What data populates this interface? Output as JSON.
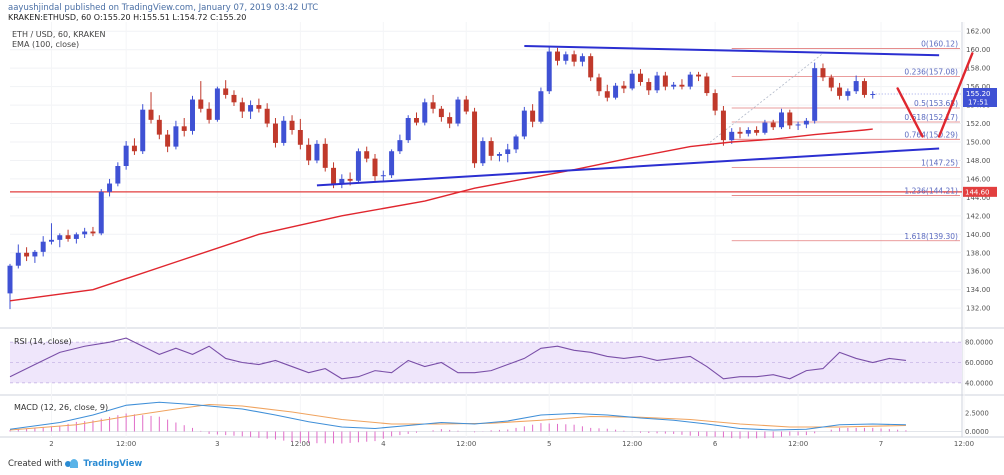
{
  "header": {
    "publish_info": "aayushjindal published on TradingView.com, January 07, 2019 03:42 UTC",
    "symbol_line": "KRAKEN:ETHUSD, 60  O:155.20  H:155.51  L:154.72  C:155.20",
    "title": "ETH / USD, 60, KRAKEN",
    "indicator": "EMA (100, close)"
  },
  "footer": {
    "created_with": "Created with",
    "brand": "TradingView"
  },
  "colors": {
    "up": "#3f51d4",
    "down": "#c0392b",
    "ema": "#e0262e",
    "trendline": "#2b2fd1",
    "fib": "#e37c7c",
    "fib_label": "#5c6bc0",
    "support": "#e23f3f",
    "annot": "#e0262e",
    "rsi": "#7a4fa8",
    "macd": "#3f8fd8",
    "signal": "#f0a35e",
    "hist": "#e06cc8"
  },
  "chart_data": {
    "type": "candlestick",
    "price_axis": {
      "min": 130.5,
      "max": 163,
      "ticks": [
        162.0,
        160.0,
        158.0,
        156.0,
        154.0,
        152.0,
        150.0,
        148.0,
        146.0,
        144.0,
        142.0,
        140.0,
        138.0,
        136.0,
        134.0,
        132.0
      ]
    },
    "time_axis": {
      "bars_visible": 115,
      "labels": [
        {
          "bar": 5,
          "text": "2"
        },
        {
          "bar": 14,
          "text": "12:00"
        },
        {
          "bar": 25,
          "text": "3"
        },
        {
          "bar": 35,
          "text": "12:00"
        },
        {
          "bar": 45,
          "text": "4"
        },
        {
          "bar": 55,
          "text": "12:00"
        },
        {
          "bar": 65,
          "text": "5"
        },
        {
          "bar": 75,
          "text": "12:00"
        },
        {
          "bar": 85,
          "text": "6"
        },
        {
          "bar": 95,
          "text": "12:00"
        },
        {
          "bar": 105,
          "text": "7"
        },
        {
          "bar": 115,
          "text": "12:00"
        }
      ]
    },
    "candles": [
      [
        133.6,
        136.8,
        131.9,
        136.6
      ],
      [
        136.6,
        138.9,
        136.3,
        138.0
      ],
      [
        138.0,
        138.6,
        137.1,
        137.6
      ],
      [
        137.6,
        138.3,
        136.9,
        138.1
      ],
      [
        138.1,
        139.8,
        137.6,
        139.2
      ],
      [
        139.2,
        141.2,
        138.9,
        139.4
      ],
      [
        139.4,
        140.1,
        138.6,
        139.9
      ],
      [
        139.9,
        140.5,
        139.2,
        139.5
      ],
      [
        139.5,
        140.2,
        139.0,
        140.0
      ],
      [
        140.0,
        140.7,
        139.6,
        140.3
      ],
      [
        140.3,
        140.8,
        139.8,
        140.1
      ],
      [
        140.1,
        144.9,
        139.9,
        144.6
      ],
      [
        144.6,
        146.0,
        144.1,
        145.5
      ],
      [
        145.5,
        147.8,
        145.2,
        147.4
      ],
      [
        147.4,
        150.1,
        147.0,
        149.6
      ],
      [
        149.6,
        150.4,
        148.6,
        149.0
      ],
      [
        149.0,
        154.1,
        148.7,
        153.5
      ],
      [
        153.5,
        155.4,
        152.0,
        152.4
      ],
      [
        152.4,
        152.9,
        150.3,
        150.8
      ],
      [
        150.8,
        151.3,
        148.9,
        149.5
      ],
      [
        149.5,
        152.3,
        149.2,
        151.7
      ],
      [
        151.7,
        152.6,
        150.6,
        151.2
      ],
      [
        151.2,
        155.0,
        150.8,
        154.6
      ],
      [
        154.6,
        156.6,
        153.2,
        153.6
      ],
      [
        153.6,
        154.3,
        152.0,
        152.4
      ],
      [
        152.4,
        156.0,
        152.2,
        155.8
      ],
      [
        155.8,
        156.7,
        154.7,
        155.1
      ],
      [
        155.1,
        155.6,
        153.9,
        154.3
      ],
      [
        154.3,
        154.8,
        152.6,
        153.3
      ],
      [
        153.3,
        154.5,
        152.5,
        154.0
      ],
      [
        154.0,
        154.7,
        153.2,
        153.6
      ],
      [
        153.6,
        154.2,
        151.6,
        152.0
      ],
      [
        152.0,
        152.6,
        149.4,
        149.9
      ],
      [
        149.9,
        152.8,
        149.6,
        152.3
      ],
      [
        152.3,
        152.9,
        150.8,
        151.3
      ],
      [
        151.3,
        152.5,
        149.2,
        149.7
      ],
      [
        149.7,
        150.4,
        147.5,
        148.0
      ],
      [
        148.0,
        150.2,
        147.7,
        149.8
      ],
      [
        149.8,
        150.4,
        146.8,
        147.2
      ],
      [
        147.2,
        147.8,
        145.0,
        145.5
      ],
      [
        145.5,
        146.5,
        145.0,
        146.0
      ],
      [
        146.0,
        146.7,
        145.3,
        145.8
      ],
      [
        145.8,
        149.3,
        145.5,
        149.0
      ],
      [
        149.0,
        149.5,
        147.8,
        148.2
      ],
      [
        148.2,
        148.7,
        145.8,
        146.3
      ],
      [
        146.3,
        146.9,
        145.7,
        146.4
      ],
      [
        146.4,
        149.2,
        146.1,
        149.0
      ],
      [
        149.0,
        150.8,
        148.7,
        150.2
      ],
      [
        150.2,
        152.9,
        149.9,
        152.6
      ],
      [
        152.6,
        153.2,
        151.8,
        152.1
      ],
      [
        152.1,
        154.7,
        151.8,
        154.3
      ],
      [
        154.3,
        155.1,
        153.1,
        153.6
      ],
      [
        153.6,
        153.9,
        152.2,
        152.7
      ],
      [
        152.7,
        153.2,
        151.5,
        152.0
      ],
      [
        152.0,
        154.9,
        151.7,
        154.6
      ],
      [
        154.6,
        155.0,
        153.0,
        153.3
      ],
      [
        153.3,
        153.7,
        147.2,
        147.7
      ],
      [
        147.7,
        150.5,
        147.4,
        150.1
      ],
      [
        150.1,
        150.5,
        148.0,
        148.5
      ],
      [
        148.5,
        148.9,
        147.9,
        148.7
      ],
      [
        148.7,
        149.8,
        147.8,
        149.2
      ],
      [
        149.2,
        150.8,
        148.8,
        150.6
      ],
      [
        150.6,
        153.8,
        150.3,
        153.4
      ],
      [
        153.4,
        154.1,
        151.6,
        152.2
      ],
      [
        152.2,
        155.9,
        152.0,
        155.5
      ],
      [
        155.5,
        160.3,
        155.2,
        159.8
      ],
      [
        159.8,
        160.2,
        158.3,
        158.8
      ],
      [
        158.8,
        159.8,
        158.4,
        159.5
      ],
      [
        159.5,
        159.9,
        158.2,
        158.7
      ],
      [
        158.7,
        159.6,
        158.2,
        159.3
      ],
      [
        159.3,
        159.6,
        156.6,
        157.0
      ],
      [
        157.0,
        157.4,
        155.0,
        155.5
      ],
      [
        155.5,
        156.2,
        154.4,
        154.8
      ],
      [
        154.8,
        156.4,
        154.6,
        156.1
      ],
      [
        156.1,
        156.6,
        155.3,
        155.8
      ],
      [
        155.8,
        157.8,
        155.6,
        157.4
      ],
      [
        157.4,
        157.9,
        156.1,
        156.5
      ],
      [
        156.5,
        156.9,
        155.1,
        155.6
      ],
      [
        155.6,
        157.6,
        155.3,
        157.2
      ],
      [
        157.2,
        157.6,
        155.6,
        156.0
      ],
      [
        156.0,
        156.5,
        155.7,
        156.2
      ],
      [
        156.2,
        156.8,
        155.7,
        156.0
      ],
      [
        156.0,
        157.6,
        155.7,
        157.3
      ],
      [
        157.3,
        157.6,
        156.6,
        157.1
      ],
      [
        157.1,
        157.5,
        155.0,
        155.3
      ],
      [
        155.3,
        155.7,
        152.9,
        153.4
      ],
      [
        153.4,
        153.9,
        149.6,
        150.2
      ],
      [
        150.2,
        151.5,
        149.8,
        151.1
      ],
      [
        151.1,
        151.6,
        150.4,
        150.9
      ],
      [
        150.9,
        151.6,
        150.6,
        151.3
      ],
      [
        151.3,
        151.7,
        150.7,
        151.0
      ],
      [
        151.0,
        152.4,
        150.8,
        152.1
      ],
      [
        152.1,
        152.4,
        151.3,
        151.6
      ],
      [
        151.6,
        153.6,
        151.4,
        153.2
      ],
      [
        153.2,
        153.5,
        151.4,
        151.8
      ],
      [
        151.8,
        152.2,
        151.3,
        151.9
      ],
      [
        151.9,
        152.6,
        151.5,
        152.3
      ],
      [
        152.3,
        158.6,
        152.0,
        158.0
      ],
      [
        158.0,
        158.5,
        156.6,
        157.0
      ],
      [
        157.0,
        157.3,
        155.5,
        155.9
      ],
      [
        155.9,
        156.4,
        154.6,
        155.0
      ],
      [
        155.0,
        155.8,
        154.5,
        155.5
      ],
      [
        155.5,
        157.2,
        155.2,
        156.6
      ],
      [
        156.6,
        156.9,
        154.8,
        155.1
      ],
      [
        155.1,
        155.5,
        154.7,
        155.2
      ]
    ],
    "ema": {
      "name": "EMA (100, close)",
      "points": [
        [
          0,
          132.8
        ],
        [
          10,
          134.0
        ],
        [
          20,
          137.0
        ],
        [
          30,
          140.0
        ],
        [
          40,
          142.0
        ],
        [
          50,
          143.6
        ],
        [
          56,
          145.0
        ],
        [
          62,
          146.0
        ],
        [
          68,
          147.0
        ],
        [
          75,
          148.3
        ],
        [
          82,
          149.5
        ],
        [
          87,
          150.0
        ],
        [
          92,
          150.3
        ],
        [
          97,
          150.8
        ],
        [
          103,
          151.3
        ],
        [
          104,
          151.4
        ]
      ]
    },
    "last_price": {
      "value": 155.2,
      "label": "155.20",
      "countdown": "17:51"
    },
    "support_level": {
      "value": 144.6,
      "label": "144.60"
    },
    "trendlines": [
      {
        "from": [
          62,
          160.4
        ],
        "to": [
          112,
          159.4
        ]
      },
      {
        "from": [
          37,
          145.3
        ],
        "to": [
          112,
          149.3
        ]
      }
    ],
    "fib_start_bar": 87,
    "fib_levels": [
      {
        "ratio": "0",
        "price": 160.12,
        "label": "0(160.12)"
      },
      {
        "ratio": "0.236",
        "price": 157.08,
        "label": "0.236(157.08)"
      },
      {
        "ratio": "0.5",
        "price": 153.68,
        "label": "0.5(153.68)"
      },
      {
        "ratio": "0.618",
        "price": 152.17,
        "label": "0.618(152.17)"
      },
      {
        "ratio": "0.764",
        "price": 150.29,
        "label": "0.764(150.29)"
      },
      {
        "ratio": "1",
        "price": 147.25,
        "label": "1(147.25)"
      },
      {
        "ratio": "1.236",
        "price": 144.21,
        "label": "1.236(144.21)"
      },
      {
        "ratio": "1.618",
        "price": 139.3,
        "label": "1.618(139.30)"
      }
    ],
    "fib_guide": {
      "from": [
        84,
        149.7
      ],
      "to": [
        98,
        159.6
      ]
    },
    "annotations": [
      {
        "from": [
          107,
          155.8
        ],
        "to": [
          110,
          150.6
        ]
      },
      {
        "from": [
          112,
          150.6
        ],
        "to": [
          116,
          159.6
        ]
      }
    ],
    "rsi": {
      "title": "RSI (14, close)",
      "min": 30,
      "max": 90,
      "band": [
        40,
        80
      ],
      "ticks": [
        80.0,
        60.0,
        40.0
      ],
      "tick_labels": [
        "80.0000",
        "60.0000",
        "40.0000"
      ],
      "points": [
        [
          0,
          46
        ],
        [
          3,
          58
        ],
        [
          6,
          70
        ],
        [
          9,
          76
        ],
        [
          12,
          80
        ],
        [
          14,
          84
        ],
        [
          16,
          76
        ],
        [
          18,
          68
        ],
        [
          20,
          74
        ],
        [
          22,
          68
        ],
        [
          24,
          76
        ],
        [
          26,
          64
        ],
        [
          28,
          60
        ],
        [
          30,
          58
        ],
        [
          32,
          62
        ],
        [
          34,
          56
        ],
        [
          36,
          50
        ],
        [
          38,
          54
        ],
        [
          40,
          44
        ],
        [
          42,
          46
        ],
        [
          44,
          52
        ],
        [
          46,
          50
        ],
        [
          48,
          62
        ],
        [
          50,
          56
        ],
        [
          52,
          60
        ],
        [
          54,
          50
        ],
        [
          56,
          50
        ],
        [
          58,
          52
        ],
        [
          60,
          58
        ],
        [
          62,
          64
        ],
        [
          64,
          74
        ],
        [
          66,
          76
        ],
        [
          68,
          72
        ],
        [
          70,
          70
        ],
        [
          72,
          66
        ],
        [
          74,
          64
        ],
        [
          76,
          66
        ],
        [
          78,
          62
        ],
        [
          80,
          64
        ],
        [
          82,
          66
        ],
        [
          84,
          56
        ],
        [
          86,
          44
        ],
        [
          88,
          46
        ],
        [
          90,
          46
        ],
        [
          92,
          48
        ],
        [
          94,
          44
        ],
        [
          96,
          52
        ],
        [
          98,
          54
        ],
        [
          100,
          70
        ],
        [
          102,
          64
        ],
        [
          104,
          60
        ],
        [
          106,
          64
        ],
        [
          108,
          62
        ]
      ]
    },
    "macd": {
      "title": "MACD (12, 26, close, 9)",
      "min": -0.2,
      "max": 4.6,
      "ticks": [
        2.5,
        0.0
      ],
      "tick_labels": [
        "2.5000",
        "0.0000"
      ],
      "macd_points": [
        [
          0,
          0.3
        ],
        [
          6,
          1.2
        ],
        [
          10,
          2.2
        ],
        [
          14,
          3.5
        ],
        [
          18,
          3.9
        ],
        [
          22,
          3.6
        ],
        [
          26,
          3.2
        ],
        [
          28,
          3.0
        ],
        [
          32,
          2.2
        ],
        [
          36,
          1.3
        ],
        [
          40,
          0.6
        ],
        [
          44,
          0.4
        ],
        [
          48,
          0.8
        ],
        [
          52,
          1.2
        ],
        [
          56,
          1.0
        ],
        [
          60,
          1.4
        ],
        [
          64,
          2.2
        ],
        [
          68,
          2.4
        ],
        [
          72,
          2.2
        ],
        [
          76,
          1.8
        ],
        [
          80,
          1.5
        ],
        [
          84,
          1.0
        ],
        [
          88,
          0.4
        ],
        [
          92,
          0.2
        ],
        [
          96,
          0.3
        ],
        [
          100,
          0.9
        ],
        [
          104,
          1.0
        ],
        [
          108,
          0.9
        ]
      ],
      "signal_points": [
        [
          0,
          0.2
        ],
        [
          8,
          0.9
        ],
        [
          14,
          2.0
        ],
        [
          20,
          3.0
        ],
        [
          24,
          3.6
        ],
        [
          28,
          3.4
        ],
        [
          34,
          2.6
        ],
        [
          40,
          1.6
        ],
        [
          46,
          1.0
        ],
        [
          52,
          1.0
        ],
        [
          58,
          1.1
        ],
        [
          64,
          1.5
        ],
        [
          70,
          2.0
        ],
        [
          76,
          1.9
        ],
        [
          82,
          1.6
        ],
        [
          88,
          1.0
        ],
        [
          94,
          0.6
        ],
        [
          100,
          0.6
        ],
        [
          108,
          0.8
        ]
      ]
    }
  }
}
